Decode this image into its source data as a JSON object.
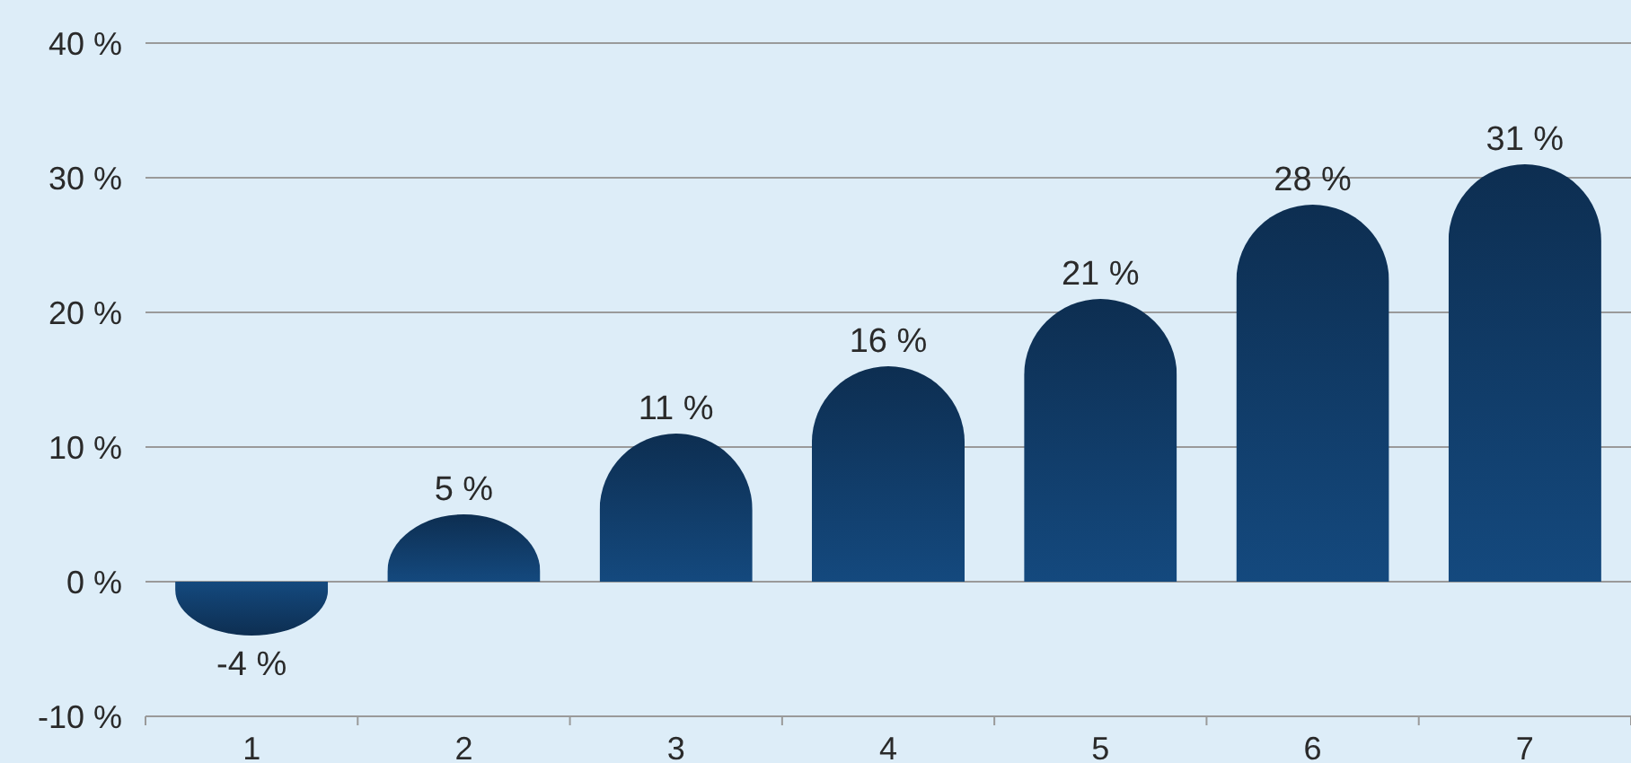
{
  "chart_data": {
    "type": "bar",
    "categories": [
      "1",
      "2",
      "3",
      "4",
      "5",
      "6",
      "7"
    ],
    "values": [
      -4,
      5,
      11,
      16,
      21,
      28,
      31
    ],
    "value_labels": [
      "-4 %",
      "5 %",
      "11 %",
      "16 %",
      "21 %",
      "28 %",
      "31 %"
    ],
    "color": "#12406f",
    "ylim": [
      -10,
      40
    ],
    "yticks": [
      {
        "value": -10,
        "label": "-10 %"
      },
      {
        "value": 0,
        "label": "0 %"
      },
      {
        "value": 10,
        "label": "10 %"
      },
      {
        "value": 20,
        "label": "20 %"
      },
      {
        "value": 30,
        "label": "30 %"
      },
      {
        "value": 40,
        "label": "40 %"
      }
    ],
    "grid": "y"
  }
}
